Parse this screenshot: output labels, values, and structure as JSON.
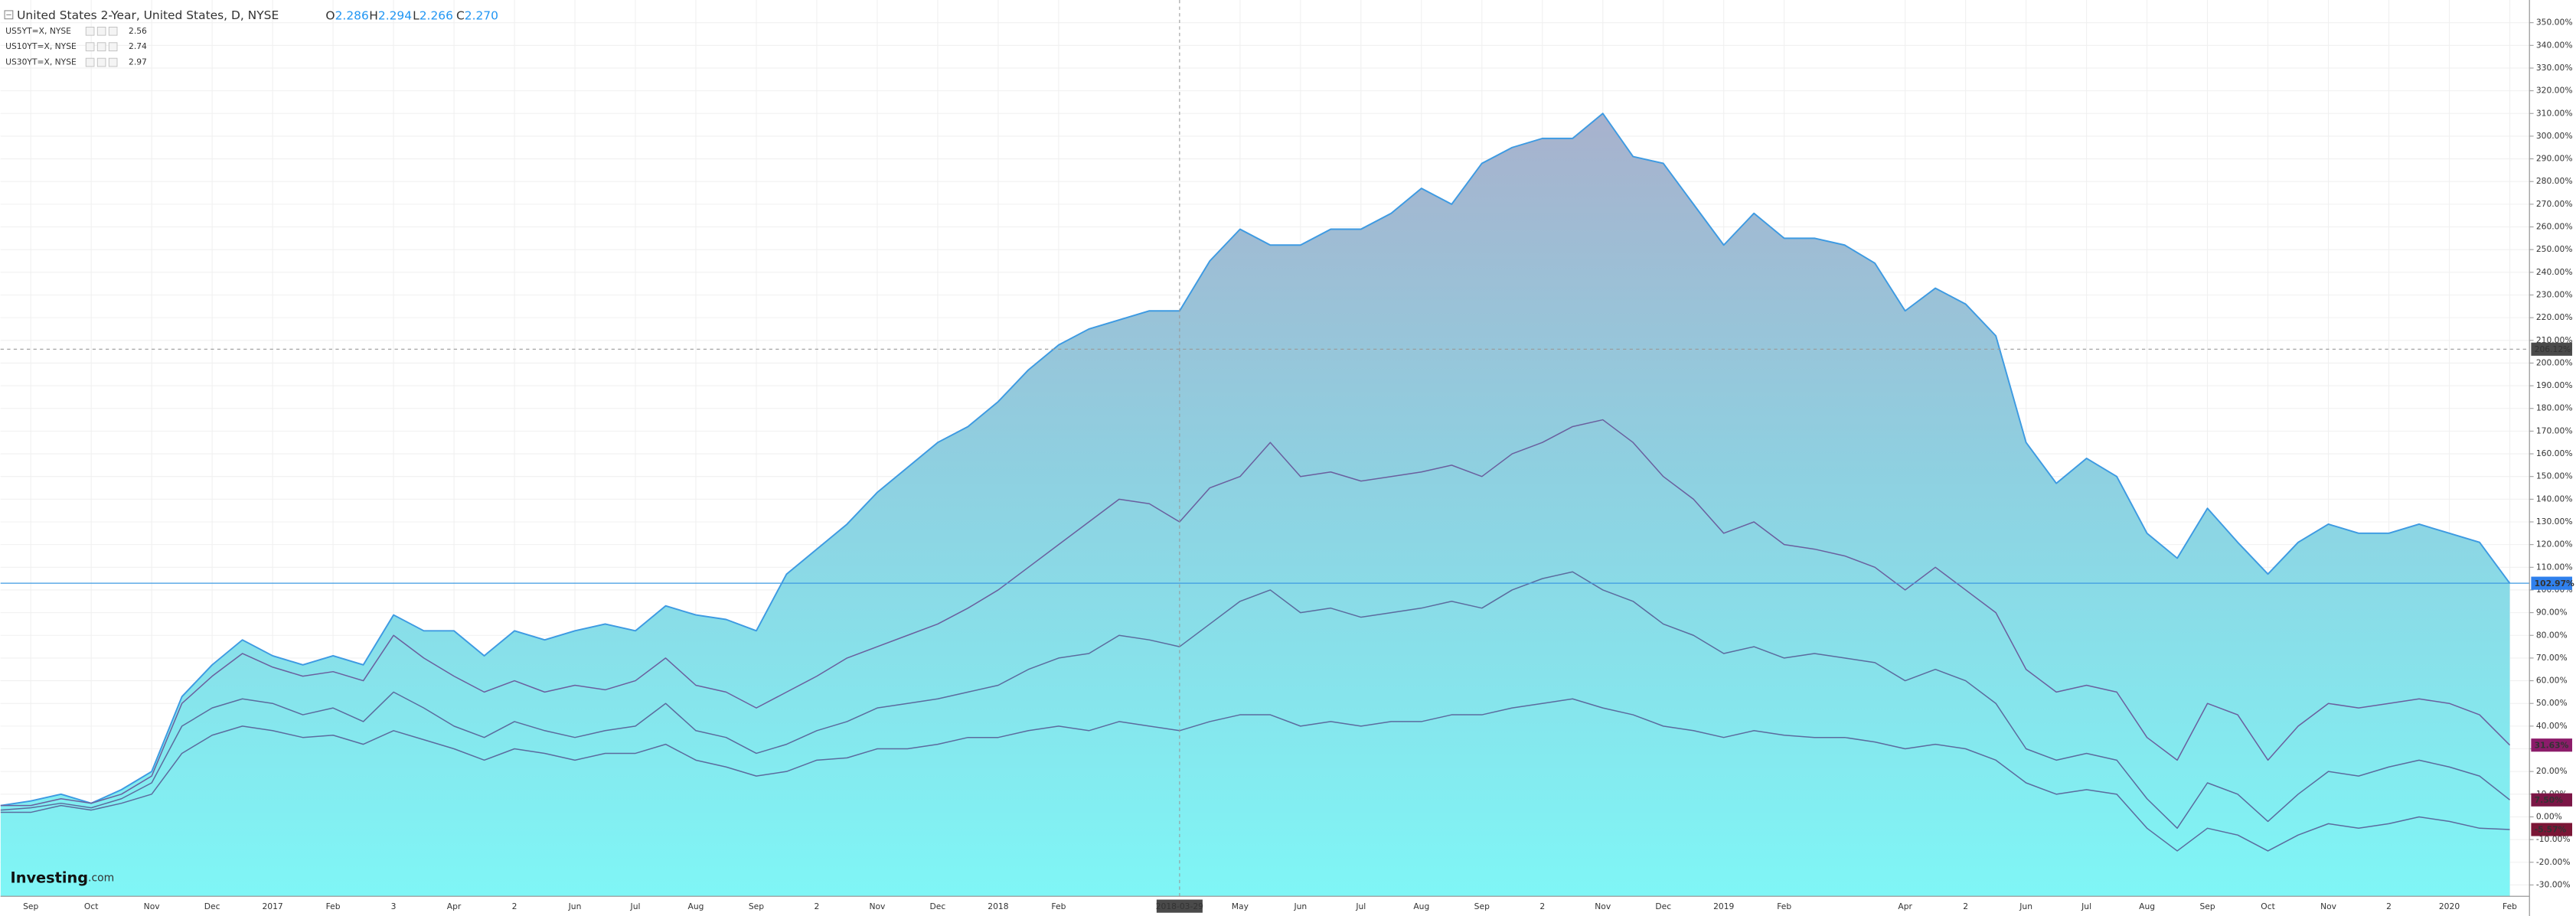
{
  "chart_data": {
    "type": "area",
    "title": "United States 2-Year, United States, D, NYSE",
    "ohlc": [
      {
        "letter": "O",
        "value": 2.286
      },
      {
        "letter": "H",
        "value": 2.294
      },
      {
        "letter": "L",
        "value": 2.266
      },
      {
        "letter": "C",
        "value": {
          "value": 2.27,
          "label": "2.270"
        }
      }
    ],
    "watermark": [
      "Investing",
      ".com"
    ],
    "categories": [
      null,
      "Sep",
      null,
      "Oct",
      null,
      "Nov",
      null,
      "Dec",
      null,
      "2017",
      null,
      "Feb",
      null,
      "3",
      null,
      "Apr",
      null,
      "2",
      null,
      "Jun",
      null,
      "Jul",
      null,
      "Aug",
      null,
      "Sep",
      null,
      "2",
      null,
      "Nov",
      null,
      "Dec",
      null,
      "2018",
      null,
      "Feb",
      null,
      null,
      null,
      "2018-03-29",
      null,
      "May",
      null,
      "Jun",
      null,
      "Jul",
      null,
      "Aug",
      null,
      "Sep",
      null,
      "2",
      null,
      "Nov",
      null,
      "Dec",
      null,
      "2019",
      null,
      "Feb",
      null,
      null,
      null,
      "Apr",
      null,
      "2",
      null,
      "Jun",
      null,
      "Jul",
      null,
      "Aug",
      null,
      "Sep",
      null,
      "Oct",
      null,
      "Nov",
      null,
      "2",
      null,
      "2020",
      null,
      "Feb"
    ],
    "series": [
      {
        "name": "United States 2-Year, United States, D, NYSE",
        "kind": "area",
        "color": "#3d9ae2",
        "label_color": "#2f80ed",
        "last_label": "102.97%",
        "values": [
          5,
          7,
          10,
          6,
          12,
          20,
          53,
          67,
          78,
          71,
          67,
          71,
          67,
          89,
          82,
          82,
          71,
          82,
          78,
          82,
          85,
          82,
          93,
          89,
          87,
          82,
          107,
          118,
          129,
          143,
          154,
          165,
          172,
          183,
          197,
          208,
          215,
          219,
          223,
          223,
          245,
          259,
          252,
          252,
          259,
          259,
          266,
          277,
          270,
          288,
          295,
          299,
          299,
          310,
          291,
          288,
          270,
          252,
          266,
          255,
          255,
          252,
          244,
          223,
          233,
          226,
          212,
          165,
          147,
          158,
          150,
          125,
          114,
          136,
          121,
          107,
          121,
          129,
          125,
          125,
          129,
          125,
          121,
          102.97
        ]
      },
      {
        "name": "US5YT=X, NYSE",
        "kind": "line",
        "color": "#6a5f9e",
        "label_color": "#8c1c6a",
        "legend_value": 2.56,
        "last_label": "31.63%",
        "values": [
          5,
          5,
          8,
          6,
          10,
          18,
          50,
          62,
          72,
          66,
          62,
          64,
          60,
          80,
          70,
          62,
          55,
          60,
          55,
          58,
          56,
          60,
          70,
          58,
          55,
          48,
          55,
          62,
          70,
          75,
          80,
          85,
          92,
          100,
          110,
          120,
          130,
          140,
          138,
          130,
          145,
          150,
          165,
          150,
          152,
          148,
          150,
          152,
          155,
          150,
          160,
          165,
          172,
          175,
          165,
          150,
          140,
          125,
          130,
          120,
          118,
          115,
          110,
          100,
          110,
          100,
          90,
          65,
          55,
          58,
          55,
          35,
          25,
          50,
          45,
          25,
          40,
          50,
          48,
          50,
          52,
          50,
          45,
          31.63
        ]
      },
      {
        "name": "US10YT=X, NYSE",
        "kind": "line",
        "color": "#5b6b9e",
        "label_color": "#7b1646",
        "legend_value": 2.74,
        "last_label": "7.50%",
        "values": [
          3,
          4,
          6,
          4,
          8,
          15,
          40,
          48,
          52,
          50,
          45,
          48,
          42,
          55,
          48,
          40,
          35,
          42,
          38,
          35,
          38,
          40,
          50,
          38,
          35,
          28,
          32,
          38,
          42,
          48,
          50,
          52,
          55,
          58,
          65,
          70,
          72,
          80,
          78,
          75,
          85,
          95,
          100,
          90,
          92,
          88,
          90,
          92,
          95,
          92,
          100,
          105,
          108,
          100,
          95,
          85,
          80,
          72,
          75,
          70,
          72,
          70,
          68,
          60,
          65,
          60,
          50,
          30,
          25,
          28,
          25,
          8,
          -5,
          15,
          10,
          -2,
          10,
          20,
          18,
          22,
          25,
          22,
          18,
          7.5
        ]
      },
      {
        "name": "US30YT=X, NYSE",
        "kind": "line",
        "color": "#5b6b9e",
        "label_color": "#7b1636",
        "legend_value": 2.97,
        "last_label": "-5.57%",
        "values": [
          2,
          2,
          5,
          3,
          6,
          10,
          28,
          36,
          40,
          38,
          35,
          36,
          32,
          38,
          34,
          30,
          25,
          30,
          28,
          25,
          28,
          28,
          32,
          25,
          22,
          18,
          20,
          25,
          26,
          30,
          30,
          32,
          35,
          35,
          38,
          40,
          38,
          42,
          40,
          38,
          42,
          45,
          45,
          40,
          42,
          40,
          42,
          42,
          45,
          45,
          48,
          50,
          52,
          48,
          45,
          40,
          38,
          35,
          38,
          36,
          35,
          35,
          33,
          30,
          32,
          30,
          25,
          15,
          10,
          12,
          10,
          -5,
          -15,
          -5,
          -8,
          -15,
          -8,
          -3,
          -5,
          -3,
          0,
          -2,
          -5,
          -5.57
        ]
      }
    ],
    "crosshair": {
      "value": 206.12,
      "label": "206.12%",
      "date": "2018-03-29"
    },
    "ylim": [
      -35,
      360
    ],
    "yticks": [
      {
        "value": -30,
        "label": "-30.00%"
      },
      {
        "value": -20,
        "label": "-20.00%"
      },
      {
        "value": -10,
        "label": "-10.00%"
      },
      {
        "value": 0,
        "label": "0.00%"
      },
      {
        "value": 10,
        "label": "10.00%"
      },
      {
        "value": 20,
        "label": "20.00%"
      },
      {
        "value": 30,
        "label": "30.00%"
      },
      {
        "value": 40,
        "label": "40.00%"
      },
      {
        "value": 50,
        "label": "50.00%"
      },
      {
        "value": 60,
        "label": "60.00%"
      },
      {
        "value": 70,
        "label": "70.00%"
      },
      {
        "value": 80,
        "label": "80.00%"
      },
      {
        "value": 90,
        "label": "90.00%"
      },
      {
        "value": 100,
        "label": "100.00%"
      },
      {
        "value": 110,
        "label": "110.00%"
      },
      {
        "value": 120,
        "label": "120.00%"
      },
      {
        "value": 130,
        "label": "130.00%"
      },
      {
        "value": 140,
        "label": "140.00%"
      },
      {
        "value": 150,
        "label": "150.00%"
      },
      {
        "value": 160,
        "label": "160.00%"
      },
      {
        "value": 170,
        "label": "170.00%"
      },
      {
        "value": 180,
        "label": "180.00%"
      },
      {
        "value": 190,
        "label": "190.00%"
      },
      {
        "value": 200,
        "label": "200.00%"
      },
      {
        "value": 210,
        "label": "210.00%"
      },
      {
        "value": 220,
        "label": "220.00%"
      },
      {
        "value": 230,
        "label": "230.00%"
      },
      {
        "value": 240,
        "label": "240.00%"
      },
      {
        "value": 250,
        "label": "250.00%"
      },
      {
        "value": 260,
        "label": "260.00%"
      },
      {
        "value": 270,
        "label": "270.00%"
      },
      {
        "value": 280,
        "label": "280.00%"
      },
      {
        "value": 290,
        "label": "290.00%"
      },
      {
        "value": 300,
        "label": "300.00%"
      },
      {
        "value": 310,
        "label": "310.00%"
      },
      {
        "value": 320,
        "label": "320.00%"
      },
      {
        "value": 330,
        "label": "330.00%"
      },
      {
        "value": 340,
        "label": "340.00%"
      },
      {
        "value": 350,
        "label": "350.00%"
      }
    ],
    "grid": true
  }
}
